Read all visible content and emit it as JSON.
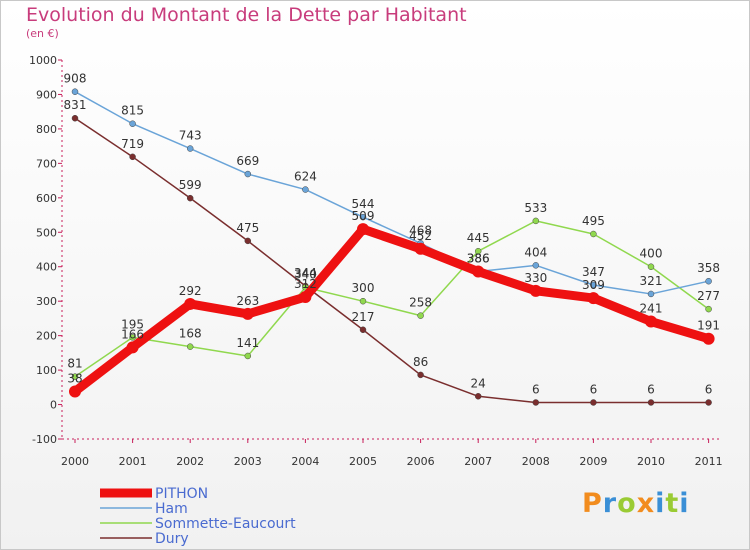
{
  "header": {
    "title": "Evolution du Montant de la Dette par Habitant",
    "subtitle": "(en €)"
  },
  "logo": {
    "text": "Proxiti",
    "letters": [
      "P",
      "r",
      "o",
      "x",
      "i",
      "t",
      "i"
    ],
    "colors": [
      "#f28c1e",
      "#3a8fd6",
      "#9acb34",
      "#f28c1e",
      "#3a8fd6",
      "#9acb34",
      "#3a8fd6"
    ]
  },
  "chart_data": {
    "type": "line",
    "title": "Evolution du Montant de la Dette par Habitant",
    "ylabel": "(en €)",
    "xlabel": "",
    "ylim": [
      -100,
      1000
    ],
    "yticks": [
      -100,
      0,
      100,
      200,
      300,
      400,
      500,
      600,
      700,
      800,
      900,
      1000
    ],
    "categories": [
      "2000",
      "2001",
      "2002",
      "2003",
      "2004",
      "2005",
      "2006",
      "2007",
      "2008",
      "2009",
      "2010",
      "2011"
    ],
    "legend_position": "bottom-left",
    "grid": false,
    "series": [
      {
        "name": "PITHON",
        "color": "#ee1111",
        "width": 9,
        "marker": 6,
        "values": [
          38,
          166,
          292,
          263,
          312,
          509,
          452,
          386,
          330,
          309,
          241,
          191
        ],
        "labels": [
          "38",
          "166",
          "292",
          "263",
          "312",
          "509",
          "452",
          "386",
          "330",
          "309",
          "241",
          "191"
        ]
      },
      {
        "name": "Ham",
        "color": "#6aa4d8",
        "width": 1.5,
        "marker": 3,
        "values": [
          908,
          815,
          743,
          669,
          624,
          544,
          468,
          386,
          404,
          347,
          321,
          358
        ],
        "labels": [
          "908",
          "815",
          "743",
          "669",
          "624",
          "544",
          "468",
          "386",
          "404",
          "347",
          "321",
          "358"
        ]
      },
      {
        "name": "Sommette-Eaucourt",
        "color": "#90d84e",
        "width": 1.5,
        "marker": 3,
        "values": [
          81,
          195,
          168,
          141,
          340,
          300,
          258,
          445,
          533,
          495,
          400,
          277
        ],
        "labels": [
          "81",
          "195",
          "168",
          "141",
          "340",
          "300",
          "258",
          "445",
          "533",
          "495",
          "400",
          "277"
        ]
      },
      {
        "name": "Dury",
        "color": "#7a2e2e",
        "width": 1.5,
        "marker": 3,
        "values": [
          831,
          719,
          599,
          475,
          344,
          217,
          86,
          24,
          6,
          6,
          6,
          6
        ],
        "labels": [
          "831",
          "719",
          "599",
          "475",
          "344",
          "217",
          "86",
          "24",
          "6",
          "6",
          "6",
          "6"
        ]
      }
    ]
  }
}
